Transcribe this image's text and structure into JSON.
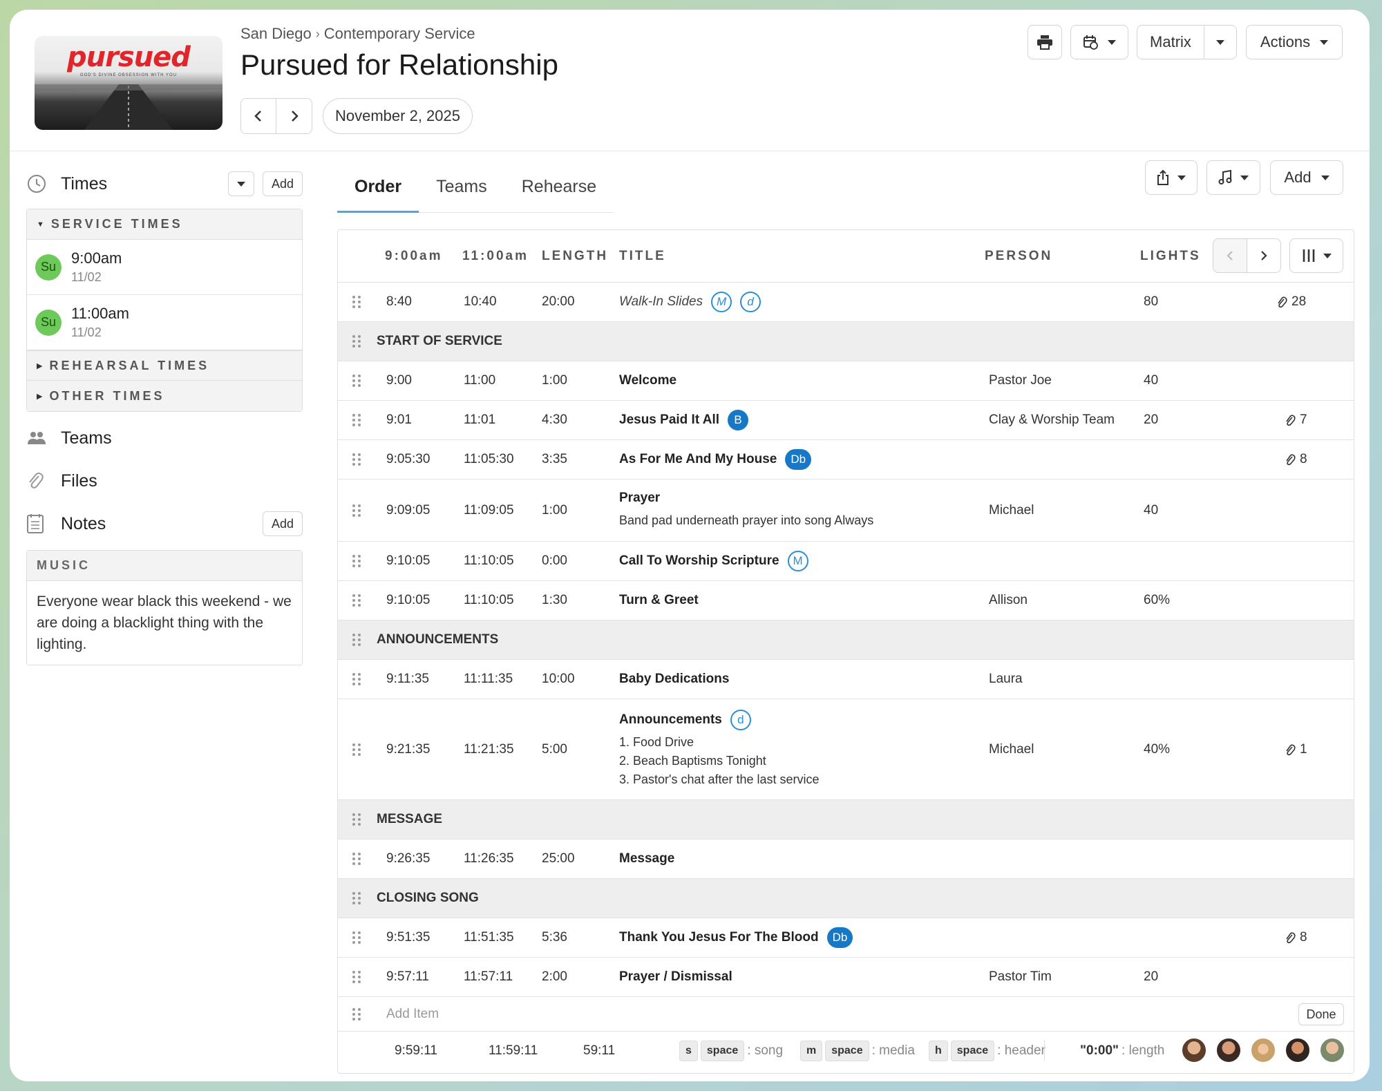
{
  "header": {
    "logo_word": "pursued",
    "logo_tagline": "GOD'S DIVINE OBSESSION WITH YOU",
    "breadcrumb": [
      "San Diego",
      "Contemporary Service"
    ],
    "breadcrumb_sep": "›",
    "title": "Pursued for Relationship",
    "date": "November 2, 2025",
    "buttons": {
      "matrix": "Matrix",
      "actions": "Actions"
    }
  },
  "sidebar": {
    "times_label": "Times",
    "add_label": "Add",
    "service_times_label": "SERVICE TIMES",
    "service_times": [
      {
        "day": "Su",
        "time": "9:00am",
        "date": "11/02"
      },
      {
        "day": "Su",
        "time": "11:00am",
        "date": "11/02"
      }
    ],
    "rehearsal_times_label": "REHEARSAL TIMES",
    "other_times_label": "OTHER TIMES",
    "teams_label": "Teams",
    "files_label": "Files",
    "notes_label": "Notes",
    "notes_add_label": "Add",
    "music_label": "MUSIC",
    "music_note": "Everyone wear black this weekend - we are doing a blacklight thing with the lighting."
  },
  "tabs": [
    "Order",
    "Teams",
    "Rehearse"
  ],
  "toolbar": {
    "add_label": "Add"
  },
  "table": {
    "columns": {
      "time1": "9:00am",
      "time2": "11:00am",
      "length": "LENGTH",
      "title": "TITLE",
      "person": "PERSON",
      "lights": "LIGHTS"
    },
    "rows": [
      {
        "t1": "8:40",
        "t2": "10:40",
        "len": "20:00",
        "title": "Walk-In Slides",
        "badges": [
          {
            "t": "M",
            "f": false
          },
          {
            "t": "d",
            "f": false
          }
        ],
        "lights": "80",
        "files": "28",
        "italic": true
      },
      {
        "header": "START OF SERVICE"
      },
      {
        "t1": "9:00",
        "t2": "11:00",
        "len": "1:00",
        "title": "Welcome",
        "person": "Pastor Joe",
        "lights": "40"
      },
      {
        "t1": "9:01",
        "t2": "11:01",
        "len": "4:30",
        "title": "Jesus Paid It All",
        "badges": [
          {
            "t": "B",
            "f": true
          }
        ],
        "person": "Clay & Worship Team",
        "lights": "20",
        "files": "7"
      },
      {
        "t1": "9:05:30",
        "t2": "11:05:30",
        "len": "3:35",
        "title": "As For Me And My House",
        "badges": [
          {
            "t": "Db",
            "f": true
          }
        ],
        "files": "8"
      },
      {
        "t1": "9:09:05",
        "t2": "11:09:05",
        "len": "1:00",
        "title": "Prayer",
        "notes": [
          "Band pad underneath prayer into song Always"
        ],
        "person": "Michael",
        "lights": "40"
      },
      {
        "t1": "9:10:05",
        "t2": "11:10:05",
        "len": "0:00",
        "title": "Call To Worship Scripture",
        "badges": [
          {
            "t": "M",
            "f": false
          }
        ]
      },
      {
        "t1": "9:10:05",
        "t2": "11:10:05",
        "len": "1:30",
        "title": "Turn & Greet",
        "person": "Allison",
        "lights": "60%"
      },
      {
        "header": "ANNOUNCEMENTS"
      },
      {
        "t1": "9:11:35",
        "t2": "11:11:35",
        "len": "10:00",
        "title": "Baby Dedications",
        "person": "Laura"
      },
      {
        "t1": "9:21:35",
        "t2": "11:21:35",
        "len": "5:00",
        "title": "Announcements",
        "badges": [
          {
            "t": "d",
            "f": false
          }
        ],
        "notes": [
          "1. Food Drive",
          "2. Beach Baptisms Tonight",
          "3. Pastor's chat after the last service"
        ],
        "person": "Michael",
        "lights": "40%",
        "files": "1"
      },
      {
        "header": "MESSAGE"
      },
      {
        "t1": "9:26:35",
        "t2": "11:26:35",
        "len": "25:00",
        "title": "Message"
      },
      {
        "header": "CLOSING SONG"
      },
      {
        "t1": "9:51:35",
        "t2": "11:51:35",
        "len": "5:36",
        "title": "Thank You Jesus For The Blood",
        "badges": [
          {
            "t": "Db",
            "f": true
          }
        ],
        "files": "8"
      },
      {
        "t1": "9:57:11",
        "t2": "11:57:11",
        "len": "2:00",
        "title": "Prayer / Dismissal",
        "person": "Pastor Tim",
        "lights": "20"
      }
    ],
    "add_item_placeholder": "Add Item",
    "done_label": "Done",
    "footer": {
      "t1": "9:59:11",
      "t2": "11:59:11",
      "len": "59:11",
      "shortcuts": [
        {
          "key": "s",
          "key2": "space",
          "desc": ": song"
        },
        {
          "key": "m",
          "key2": "space",
          "desc": ": media"
        },
        {
          "key": "h",
          "key2": "space",
          "desc": ": header"
        }
      ],
      "length_hint_key": "\"0:00\"",
      "length_hint_desc": ": length"
    }
  },
  "colors": {
    "accent": "#4aa7d9",
    "badge": "#1778c8",
    "su_green": "#6cc95a"
  },
  "icons": [
    "print-icon",
    "calendar-sync-icon",
    "share-icon",
    "music-note-icon",
    "clock-icon",
    "people-icon",
    "paperclip-icon",
    "notes-icon",
    "columns-icon"
  ]
}
